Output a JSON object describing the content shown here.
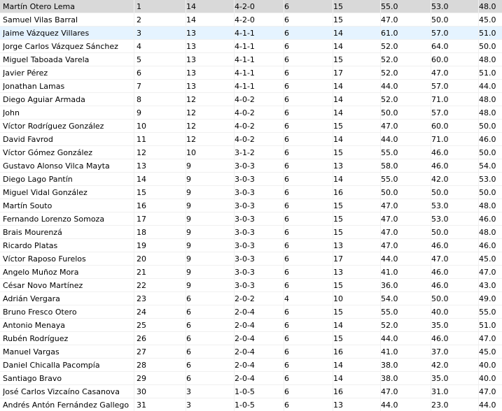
{
  "standings": {
    "rows": [
      {
        "name": "Martín Otero Lema",
        "rank": "1",
        "points": "14",
        "record": "4-2-0",
        "games": "6",
        "c1": "15",
        "c2": "55.0",
        "c3": "53.0",
        "c4": "48.0"
      },
      {
        "name": "Samuel Vilas Barral",
        "rank": "2",
        "points": "14",
        "record": "4-2-0",
        "games": "6",
        "c1": "15",
        "c2": "47.0",
        "c3": "50.0",
        "c4": "45.0"
      },
      {
        "name": "Jaime Vázquez Villares",
        "rank": "3",
        "points": "13",
        "record": "4-1-1",
        "games": "6",
        "c1": "14",
        "c2": "61.0",
        "c3": "57.0",
        "c4": "51.0"
      },
      {
        "name": "Jorge Carlos Vázquez Sánchez",
        "rank": "4",
        "points": "13",
        "record": "4-1-1",
        "games": "6",
        "c1": "14",
        "c2": "52.0",
        "c3": "64.0",
        "c4": "50.0"
      },
      {
        "name": "Miguel Taboada Varela",
        "rank": "5",
        "points": "13",
        "record": "4-1-1",
        "games": "6",
        "c1": "15",
        "c2": "52.0",
        "c3": "60.0",
        "c4": "48.0"
      },
      {
        "name": "Javier Pérez",
        "rank": "6",
        "points": "13",
        "record": "4-1-1",
        "games": "6",
        "c1": "17",
        "c2": "52.0",
        "c3": "47.0",
        "c4": "51.0"
      },
      {
        "name": "Jonathan Lamas",
        "rank": "7",
        "points": "13",
        "record": "4-1-1",
        "games": "6",
        "c1": "14",
        "c2": "44.0",
        "c3": "57.0",
        "c4": "44.0"
      },
      {
        "name": "Diego Aguiar Armada",
        "rank": "8",
        "points": "12",
        "record": "4-0-2",
        "games": "6",
        "c1": "14",
        "c2": "52.0",
        "c3": "71.0",
        "c4": "48.0"
      },
      {
        "name": "John",
        "rank": "9",
        "points": "12",
        "record": "4-0-2",
        "games": "6",
        "c1": "14",
        "c2": "50.0",
        "c3": "57.0",
        "c4": "48.0"
      },
      {
        "name": "Víctor Rodríguez González",
        "rank": "10",
        "points": "12",
        "record": "4-0-2",
        "games": "6",
        "c1": "15",
        "c2": "47.0",
        "c3": "60.0",
        "c4": "50.0"
      },
      {
        "name": "David Favrod",
        "rank": "11",
        "points": "12",
        "record": "4-0-2",
        "games": "6",
        "c1": "14",
        "c2": "44.0",
        "c3": "71.0",
        "c4": "46.0"
      },
      {
        "name": "Víctor Gómez González",
        "rank": "12",
        "points": "10",
        "record": "3-1-2",
        "games": "6",
        "c1": "15",
        "c2": "55.0",
        "c3": "46.0",
        "c4": "50.0"
      },
      {
        "name": "Gustavo Alonso Vilca Mayta",
        "rank": "13",
        "points": "9",
        "record": "3-0-3",
        "games": "6",
        "c1": "13",
        "c2": "58.0",
        "c3": "46.0",
        "c4": "54.0"
      },
      {
        "name": "Diego Lago Pantín",
        "rank": "14",
        "points": "9",
        "record": "3-0-3",
        "games": "6",
        "c1": "14",
        "c2": "55.0",
        "c3": "42.0",
        "c4": "53.0"
      },
      {
        "name": "Miguel Vidal González",
        "rank": "15",
        "points": "9",
        "record": "3-0-3",
        "games": "6",
        "c1": "16",
        "c2": "50.0",
        "c3": "50.0",
        "c4": "50.0"
      },
      {
        "name": "Martín Souto",
        "rank": "16",
        "points": "9",
        "record": "3-0-3",
        "games": "6",
        "c1": "15",
        "c2": "47.0",
        "c3": "53.0",
        "c4": "48.0"
      },
      {
        "name": "Fernando Lorenzo Somoza",
        "rank": "17",
        "points": "9",
        "record": "3-0-3",
        "games": "6",
        "c1": "15",
        "c2": "47.0",
        "c3": "53.0",
        "c4": "46.0"
      },
      {
        "name": "Brais Mourenzá",
        "rank": "18",
        "points": "9",
        "record": "3-0-3",
        "games": "6",
        "c1": "15",
        "c2": "47.0",
        "c3": "50.0",
        "c4": "48.0"
      },
      {
        "name": "Ricardo Platas",
        "rank": "19",
        "points": "9",
        "record": "3-0-3",
        "games": "6",
        "c1": "13",
        "c2": "47.0",
        "c3": "46.0",
        "c4": "46.0"
      },
      {
        "name": "Víctor Raposo Furelos",
        "rank": "20",
        "points": "9",
        "record": "3-0-3",
        "games": "6",
        "c1": "17",
        "c2": "44.0",
        "c3": "47.0",
        "c4": "45.0"
      },
      {
        "name": "Angelo Muñoz Mora",
        "rank": "21",
        "points": "9",
        "record": "3-0-3",
        "games": "6",
        "c1": "13",
        "c2": "41.0",
        "c3": "46.0",
        "c4": "47.0"
      },
      {
        "name": "César Novo Martínez",
        "rank": "22",
        "points": "9",
        "record": "3-0-3",
        "games": "6",
        "c1": "15",
        "c2": "36.0",
        "c3": "46.0",
        "c4": "43.0"
      },
      {
        "name": "Adrián Vergara",
        "rank": "23",
        "points": "6",
        "record": "2-0-2",
        "games": "4",
        "c1": "10",
        "c2": "54.0",
        "c3": "50.0",
        "c4": "49.0"
      },
      {
        "name": "Bruno Fresco Otero",
        "rank": "24",
        "points": "6",
        "record": "2-0-4",
        "games": "6",
        "c1": "15",
        "c2": "55.0",
        "c3": "40.0",
        "c4": "55.0"
      },
      {
        "name": "Antonio Menaya",
        "rank": "25",
        "points": "6",
        "record": "2-0-4",
        "games": "6",
        "c1": "14",
        "c2": "52.0",
        "c3": "35.0",
        "c4": "51.0"
      },
      {
        "name": "Rubén Rodríguez",
        "rank": "26",
        "points": "6",
        "record": "2-0-4",
        "games": "6",
        "c1": "15",
        "c2": "44.0",
        "c3": "46.0",
        "c4": "47.0"
      },
      {
        "name": "Manuel Vargas",
        "rank": "27",
        "points": "6",
        "record": "2-0-4",
        "games": "6",
        "c1": "16",
        "c2": "41.0",
        "c3": "37.0",
        "c4": "45.0"
      },
      {
        "name": "Daniel Chicalla Pacompía",
        "rank": "28",
        "points": "6",
        "record": "2-0-4",
        "games": "6",
        "c1": "14",
        "c2": "38.0",
        "c3": "42.0",
        "c4": "40.0"
      },
      {
        "name": "Santiago Bravo",
        "rank": "29",
        "points": "6",
        "record": "2-0-4",
        "games": "6",
        "c1": "14",
        "c2": "38.0",
        "c3": "35.0",
        "c4": "40.0"
      },
      {
        "name": "José Carlos Vizcaíno Casanova",
        "rank": "30",
        "points": "3",
        "record": "1-0-5",
        "games": "6",
        "c1": "16",
        "c2": "47.0",
        "c3": "31.0",
        "c4": "47.0"
      },
      {
        "name": "Andrés Antón Fernández Gallego",
        "rank": "31",
        "points": "3",
        "record": "1-0-5",
        "games": "6",
        "c1": "13",
        "c2": "44.0",
        "c3": "23.0",
        "c4": "44.0"
      }
    ]
  },
  "colors": {
    "selected_row": "#d9d9d9",
    "hover_row": "#e5f3ff",
    "grid_line": "#f0f0f0"
  }
}
